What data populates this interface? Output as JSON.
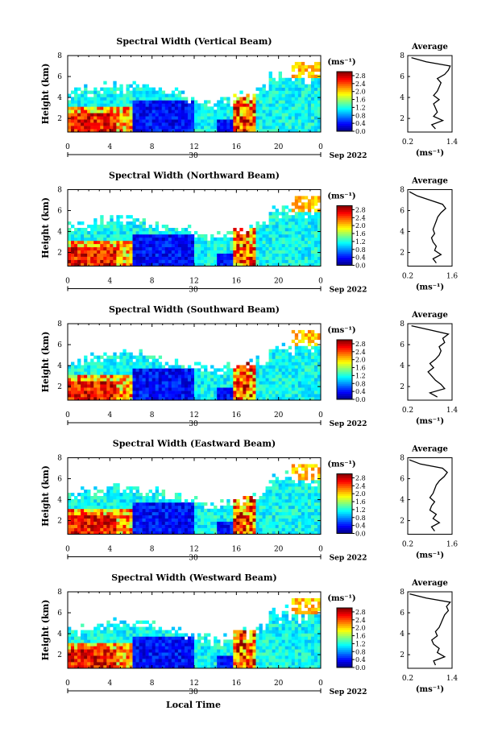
{
  "figure": {
    "xlabel": "Local Time",
    "date_label": "Sep 2022",
    "day_label": "30",
    "colorbar_unit": "(ms⁻¹)",
    "average_title": "Average",
    "average_xlabel": "(ms⁻¹)"
  },
  "chart_data": [
    {
      "type": "heatmap",
      "title": "Spectral Width (Vertical Beam)",
      "ylabel": "Height (km)",
      "xticks": [
        "0",
        "4",
        "8",
        "12",
        "16",
        "20",
        "0"
      ],
      "yticks": [
        "2",
        "4",
        "6",
        "8"
      ],
      "xlim": [
        0,
        24
      ],
      "ylim": [
        0.7,
        8
      ],
      "colorbar_ticks": [
        "0.0",
        "0.4",
        "0.8",
        "1.2",
        "1.6",
        "2.0",
        "2.4",
        "2.8"
      ],
      "colorbar_range": [
        0,
        3.0
      ],
      "average": {
        "xticks": [
          "0.2",
          "1.4"
        ],
        "xlim": [
          0.2,
          1.4
        ],
        "yticks": [
          "2",
          "4",
          "6",
          "8"
        ],
        "ylim": [
          0.7,
          8
        ],
        "height": [
          1.0,
          1.4,
          1.8,
          2.2,
          2.6,
          3.0,
          3.4,
          3.8,
          4.2,
          4.6,
          5.0,
          5.4,
          5.8,
          6.2,
          6.6,
          7.0,
          7.4,
          7.8
        ],
        "value": [
          0.95,
          0.85,
          1.15,
          0.9,
          1.0,
          0.95,
          0.9,
          1.05,
          0.9,
          1.0,
          1.05,
          1.1,
          1.0,
          1.2,
          1.3,
          1.35,
          0.7,
          0.3
        ]
      }
    },
    {
      "type": "heatmap",
      "title": "Spectral Width (Northward Beam)",
      "ylabel": "Height (km)",
      "xticks": [
        "0",
        "4",
        "8",
        "12",
        "16",
        "20",
        "0"
      ],
      "yticks": [
        "2",
        "4",
        "6",
        "8"
      ],
      "xlim": [
        0,
        24
      ],
      "ylim": [
        0.7,
        8
      ],
      "colorbar_ticks": [
        "0.0",
        "0.4",
        "0.8",
        "1.2",
        "1.6",
        "2.0",
        "2.4",
        "2.8"
      ],
      "colorbar_range": [
        0,
        3.0
      ],
      "average": {
        "xticks": [
          "0.2",
          "1.6"
        ],
        "xlim": [
          0.2,
          1.6
        ],
        "yticks": [
          "2",
          "4",
          "6",
          "8"
        ],
        "ylim": [
          0.7,
          8
        ],
        "height": [
          1.0,
          1.4,
          1.8,
          2.2,
          2.6,
          3.0,
          3.4,
          3.8,
          4.2,
          4.6,
          5.0,
          5.4,
          5.8,
          6.2,
          6.6,
          7.0,
          7.4,
          7.8
        ],
        "value": [
          1.1,
          1.0,
          1.25,
          1.05,
          1.1,
          1.0,
          0.95,
          1.05,
          1.0,
          1.05,
          1.1,
          1.15,
          1.25,
          1.4,
          1.3,
          0.9,
          0.5,
          0.25
        ]
      }
    },
    {
      "type": "heatmap",
      "title": "Spectral Width (Southward Beam)",
      "ylabel": "Height (km)",
      "xticks": [
        "0",
        "4",
        "8",
        "12",
        "16",
        "20",
        "0"
      ],
      "yticks": [
        "2",
        "4",
        "6",
        "8"
      ],
      "xlim": [
        0,
        24
      ],
      "ylim": [
        0.7,
        8
      ],
      "colorbar_ticks": [
        "0.0",
        "0.4",
        "0.8",
        "1.2",
        "1.6",
        "2.0",
        "2.4",
        "2.8"
      ],
      "colorbar_range": [
        0,
        3.0
      ],
      "average": {
        "xticks": [
          "0.2",
          "1.4"
        ],
        "xlim": [
          0.2,
          1.4
        ],
        "yticks": [
          "2",
          "4",
          "6",
          "8"
        ],
        "ylim": [
          0.7,
          8
        ],
        "height": [
          1.0,
          1.4,
          1.8,
          2.2,
          2.6,
          3.0,
          3.4,
          3.8,
          4.2,
          4.6,
          5.0,
          5.4,
          5.8,
          6.2,
          6.6,
          7.0,
          7.4,
          7.8
        ],
        "value": [
          1.0,
          0.8,
          1.2,
          1.1,
          0.95,
          0.85,
          0.75,
          0.9,
          0.8,
          0.95,
          1.05,
          1.1,
          1.05,
          1.2,
          1.15,
          1.3,
          0.8,
          0.3
        ]
      }
    },
    {
      "type": "heatmap",
      "title": "Spectral Width (Eastward Beam)",
      "ylabel": "Height (km)",
      "xticks": [
        "0",
        "4",
        "8",
        "12",
        "16",
        "20",
        "0"
      ],
      "yticks": [
        "2",
        "4",
        "6",
        "8"
      ],
      "xlim": [
        0,
        24
      ],
      "ylim": [
        0.7,
        8
      ],
      "colorbar_ticks": [
        "0.0",
        "0.4",
        "0.8",
        "1.2",
        "1.6",
        "2.0",
        "2.4",
        "2.8"
      ],
      "colorbar_range": [
        0,
        3.0
      ],
      "average": {
        "xticks": [
          "0.2",
          "1.6"
        ],
        "xlim": [
          0.2,
          1.6
        ],
        "yticks": [
          "2",
          "4",
          "6",
          "8"
        ],
        "ylim": [
          0.7,
          8
        ],
        "height": [
          1.0,
          1.4,
          1.8,
          2.2,
          2.6,
          3.0,
          3.4,
          3.8,
          4.2,
          4.6,
          5.0,
          5.4,
          5.8,
          6.2,
          6.6,
          7.0,
          7.4,
          7.8
        ],
        "value": [
          1.05,
          0.95,
          1.2,
          1.0,
          1.1,
          0.9,
          0.95,
          1.05,
          0.9,
          1.0,
          1.05,
          1.1,
          1.2,
          1.35,
          1.45,
          1.3,
          0.6,
          0.25
        ]
      }
    },
    {
      "type": "heatmap",
      "title": "Spectral Width (Westward Beam)",
      "ylabel": "Height (km)",
      "xticks": [
        "0",
        "4",
        "8",
        "12",
        "16",
        "20",
        "0"
      ],
      "yticks": [
        "2",
        "4",
        "6",
        "8"
      ],
      "xlim": [
        0,
        24
      ],
      "ylim": [
        0.7,
        8
      ],
      "colorbar_ticks": [
        "0.0",
        "0.4",
        "0.8",
        "1.2",
        "1.6",
        "2.0",
        "2.4",
        "2.8"
      ],
      "colorbar_range": [
        0,
        3.0
      ],
      "average": {
        "xticks": [
          "0.2",
          "1.4"
        ],
        "xlim": [
          0.2,
          1.4
        ],
        "yticks": [
          "2",
          "4",
          "6",
          "8"
        ],
        "ylim": [
          0.7,
          8
        ],
        "height": [
          1.0,
          1.4,
          1.8,
          2.2,
          2.6,
          3.0,
          3.4,
          3.8,
          4.2,
          4.6,
          5.0,
          5.4,
          5.8,
          6.2,
          6.6,
          7.0,
          7.4,
          7.8
        ],
        "value": [
          0.95,
          0.9,
          1.2,
          1.0,
          1.05,
          0.9,
          0.85,
          1.0,
          0.95,
          1.05,
          1.1,
          1.15,
          1.2,
          1.3,
          1.25,
          1.35,
          0.7,
          0.25
        ]
      }
    }
  ]
}
